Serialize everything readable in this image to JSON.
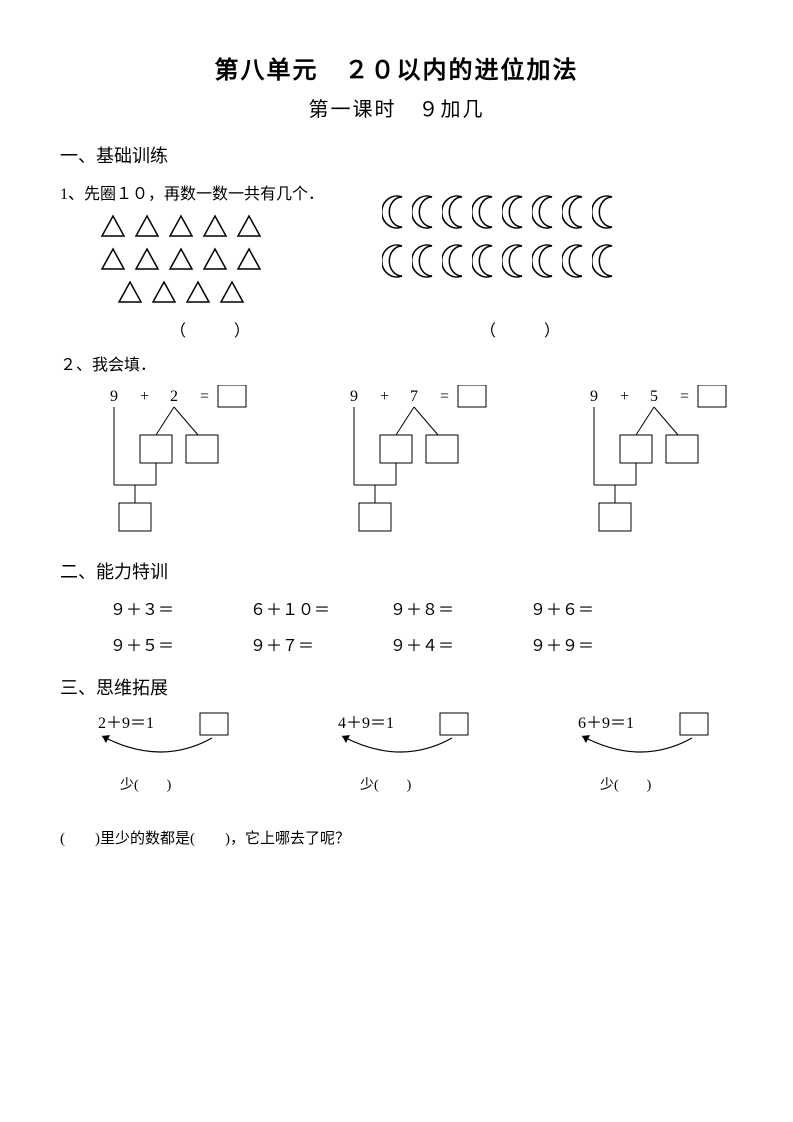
{
  "title_main": "第八单元　２０以内的进位加法",
  "title_sub": "第一课时　９加几",
  "section1": "一、基础训练",
  "q1_label": "1、先圈１０，再数一数一共有几个．",
  "triangle_rows": [
    5,
    5,
    4
  ],
  "moon_rows": [
    8,
    8
  ],
  "paren_txt": "（　　　）",
  "q2_label": "２、我会填．",
  "fill_items": [
    {
      "a": "9",
      "op": "+",
      "b": "2",
      "eq": "="
    },
    {
      "a": "9",
      "op": "+",
      "b": "7",
      "eq": "="
    },
    {
      "a": "9",
      "op": "+",
      "b": "5",
      "eq": "="
    }
  ],
  "section2": "二、能力特训",
  "drills": [
    [
      "９＋３＝",
      "６＋１０＝",
      "９＋８＝",
      "９＋６＝"
    ],
    [
      "９＋５＝",
      "９＋７＝",
      "９＋４＝",
      "９＋９＝"
    ]
  ],
  "section3": "三、思维拓展",
  "think_items": [
    {
      "a": "2",
      "b": "9",
      "prefix": "1"
    },
    {
      "a": "4",
      "b": "9",
      "prefix": "1"
    },
    {
      "a": "6",
      "b": "9",
      "prefix": "1"
    }
  ],
  "think_label": "少(　　)",
  "final_q": "(　　)里少的数都是(　　)，它上哪去了呢？",
  "colors": {
    "text": "#000000",
    "bg": "#ffffff",
    "stroke": "#000000"
  }
}
